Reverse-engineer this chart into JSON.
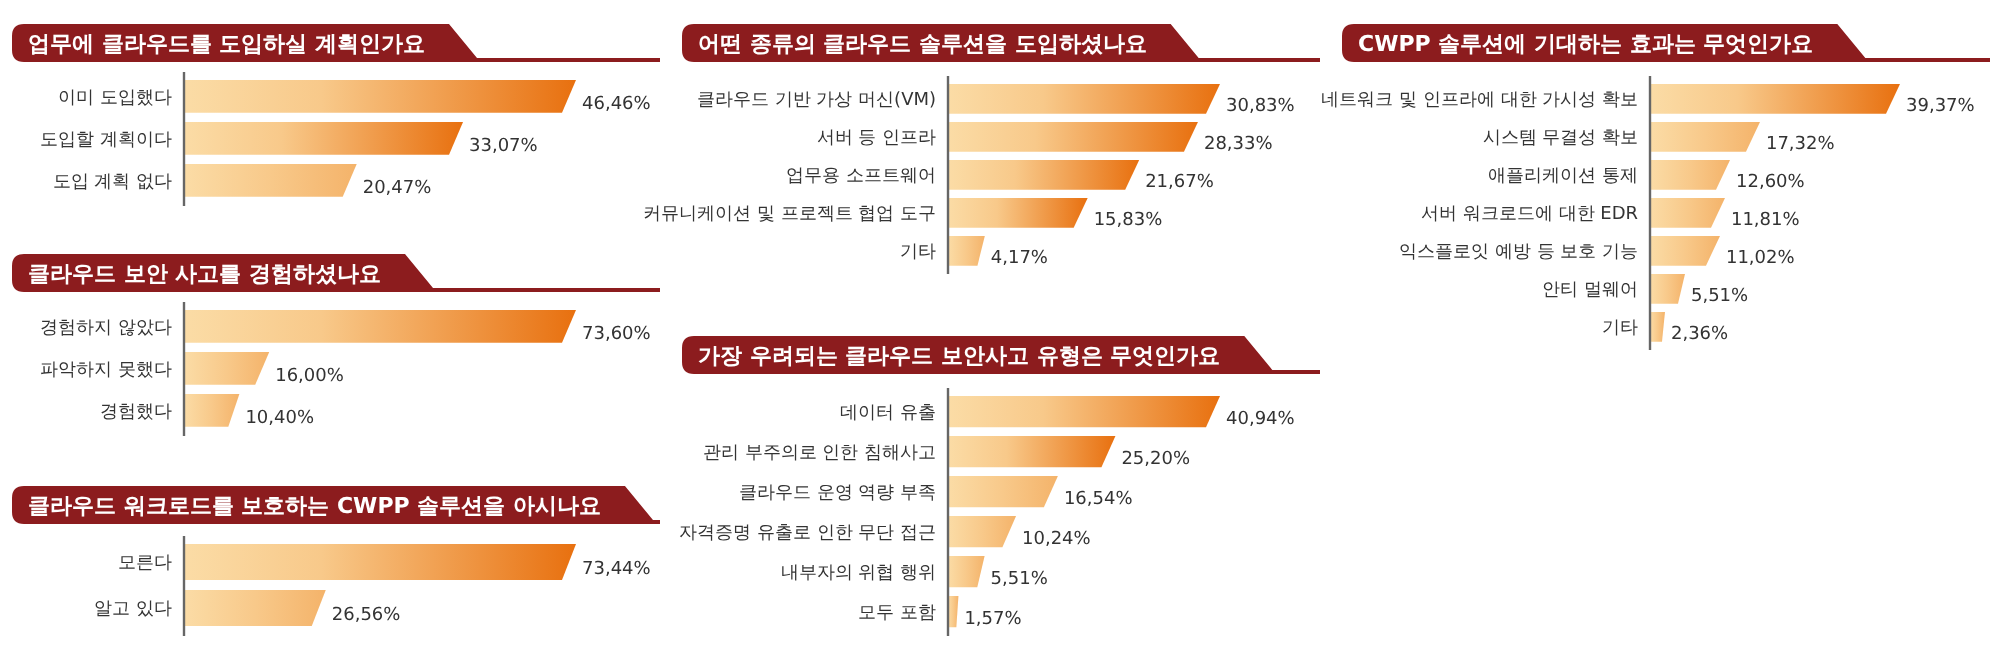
{
  "chart_data": [
    {
      "type": "bar",
      "orientation": "horizontal",
      "title": "업무에 클라우드를 도입하실 계획인가요",
      "categories": [
        "이미 도입했다",
        "도입할 계획이다",
        "도입 계획 없다"
      ],
      "values": [
        46.46,
        33.07,
        20.47
      ],
      "value_labels": [
        "46,46%",
        "33,07%",
        "20,47%"
      ],
      "color": "#e8700f"
    },
    {
      "type": "bar",
      "orientation": "horizontal",
      "title": "클라우드 보안 사고를 경험하셨나요",
      "categories": [
        "경험하지 않았다",
        "파악하지 못했다",
        "경험했다"
      ],
      "values": [
        73.6,
        16.0,
        10.4
      ],
      "value_labels": [
        "73,60%",
        "16,00%",
        "10,40%"
      ],
      "color": "#e8700f"
    },
    {
      "type": "bar",
      "orientation": "horizontal",
      "title": "클라우드 워크로드를 보호하는 CWPP 솔루션을 아시나요",
      "categories": [
        "모른다",
        "알고 있다"
      ],
      "values": [
        73.44,
        26.56
      ],
      "value_labels": [
        "73,44%",
        "26,56%"
      ],
      "color": "#e8700f"
    },
    {
      "type": "bar",
      "orientation": "horizontal",
      "title": "어떤 종류의 클라우드 솔루션을 도입하셨나요",
      "categories": [
        "클라우드 기반 가상 머신(VM)",
        "서버 등 인프라",
        "업무용 소프트웨어",
        "커뮤니케이션 및 프로젝트 협업 도구",
        "기타"
      ],
      "values": [
        30.83,
        28.33,
        21.67,
        15.83,
        4.17
      ],
      "value_labels": [
        "30,83%",
        "28,33%",
        "21,67%",
        "15,83%",
        "4,17%"
      ],
      "color": "#e8700f"
    },
    {
      "type": "bar",
      "orientation": "horizontal",
      "title": "가장 우려되는 클라우드 보안사고 유형은 무엇인가요",
      "categories": [
        "데이터 유출",
        "관리 부주의로 인한 침해사고",
        "클라우드 운영 역량 부족",
        "자격증명 유출로 인한 무단 접근",
        "내부자의 위협 행위",
        "모두 포함"
      ],
      "values": [
        40.94,
        25.2,
        16.54,
        10.24,
        5.51,
        1.57
      ],
      "value_labels": [
        "40,94%",
        "25,20%",
        "16,54%",
        "10,24%",
        "5,51%",
        "1,57%"
      ],
      "color": "#e8700f"
    },
    {
      "type": "bar",
      "orientation": "horizontal",
      "title": "CWPP 솔루션에 기대하는 효과는 무엇인가요",
      "categories": [
        "네트워크 및 인프라에 대한 가시성 확보",
        "시스템 무결성 확보",
        "애플리케이션 통제",
        "서버 워크로드에 대한 EDR",
        "익스플로잇 예방 등 보호 기능",
        "안티 멀웨어",
        "기타"
      ],
      "values": [
        39.37,
        17.32,
        12.6,
        11.81,
        11.02,
        5.51,
        2.36
      ],
      "value_labels": [
        "39,37%",
        "17,32%",
        "12,60%",
        "11,81%",
        "11,02%",
        "5,51%",
        "2,36%"
      ],
      "color": "#e8700f"
    }
  ]
}
